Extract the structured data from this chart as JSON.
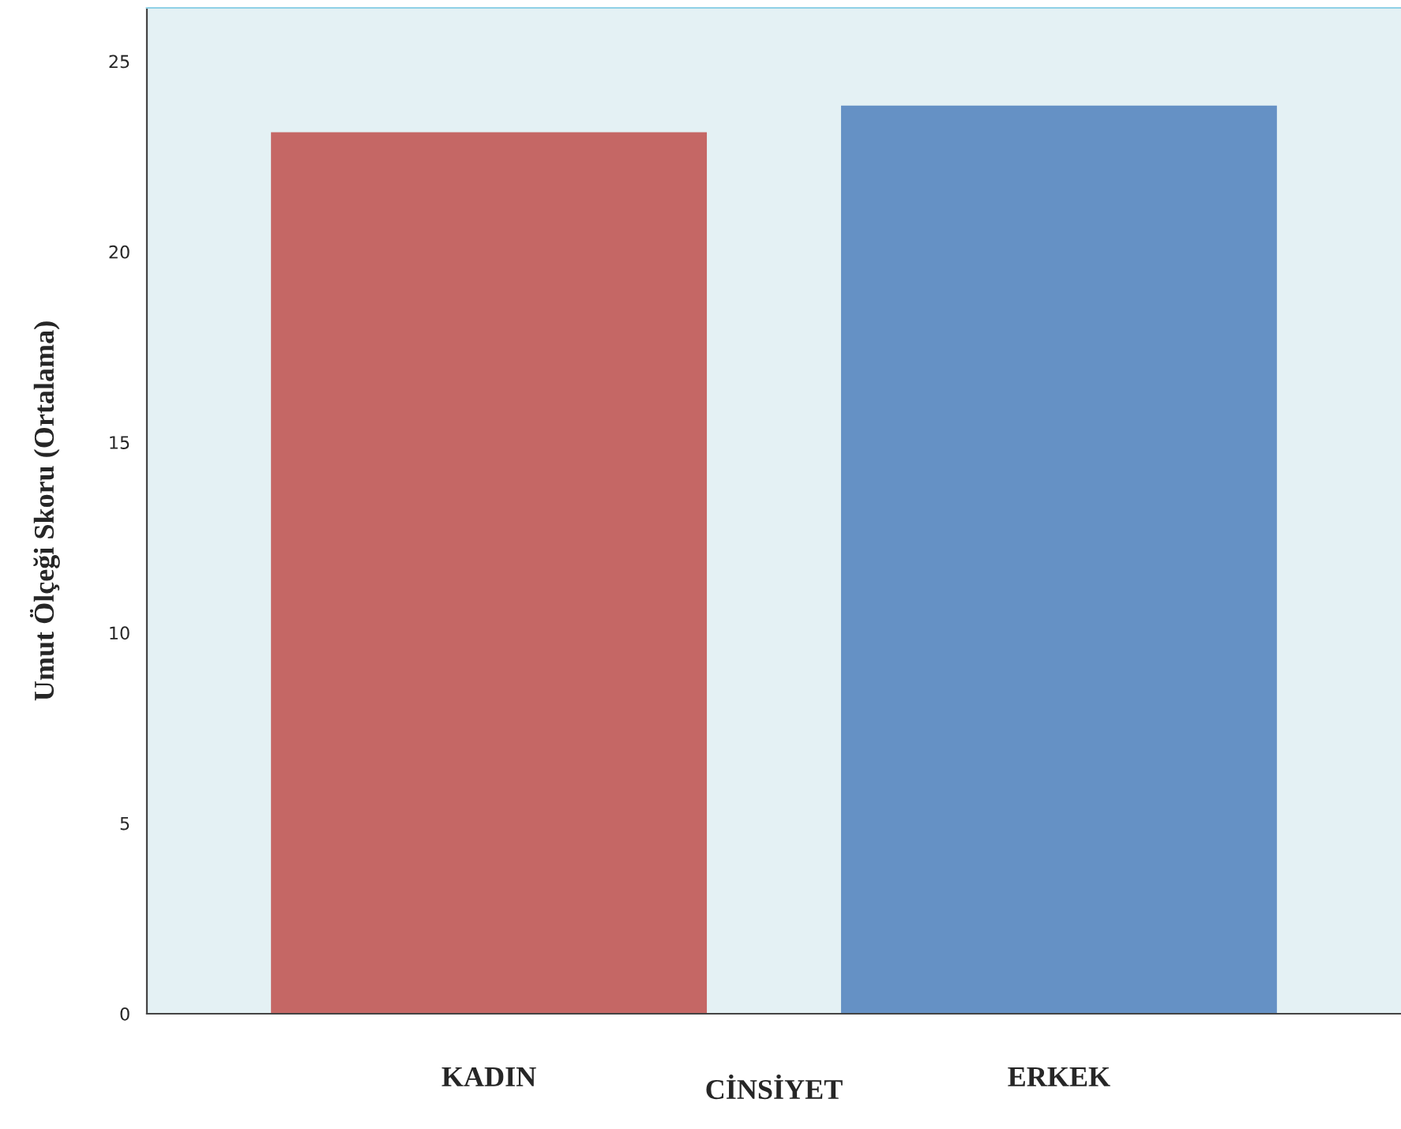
{
  "chart_data": {
    "type": "bar",
    "xlabel": "CİNSİYET",
    "ylabel": "Umut Ölçeği Skoru (Ortalama)",
    "categories": [
      "KADIN",
      "ERKEK"
    ],
    "values": [
      23.1,
      23.8
    ],
    "colors": [
      "#c0504d",
      "#4f81bd"
    ],
    "ylim": [
      0,
      26.4
    ],
    "yticks": [
      0,
      5,
      10,
      15,
      20,
      25
    ],
    "grid": false,
    "legend": false
  }
}
